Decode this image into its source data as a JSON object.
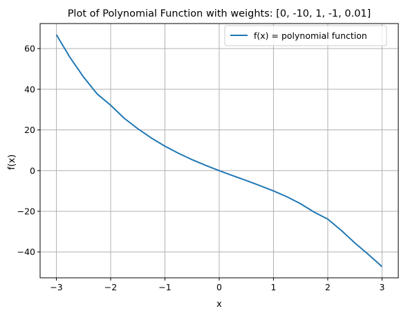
{
  "chart_data": {
    "type": "line",
    "title": "Plot of Polynomial Function with weights: [0, -10, 1, -1, 0.01]",
    "xlabel": "x",
    "ylabel": "f(x)",
    "xlim": [
      -3.3,
      3.3
    ],
    "ylim": [
      -52.7,
      72.3
    ],
    "xticks": [
      -3,
      -2,
      -1,
      0,
      1,
      2,
      3
    ],
    "xtick_labels": [
      "−3",
      "−2",
      "−1",
      "0",
      "1",
      "2",
      "3"
    ],
    "yticks": [
      -40,
      -20,
      0,
      20,
      40,
      60
    ],
    "ytick_labels": [
      "−40",
      "−20",
      "0",
      "20",
      "40",
      "60"
    ],
    "grid": true,
    "legend": "top-right",
    "series": [
      {
        "name": "f(x) = polynomial function",
        "color": "#1f77b4",
        "x": [
          -3.0,
          -2.75,
          -2.5,
          -2.25,
          -2.0,
          -1.75,
          -1.5,
          -1.25,
          -1.0,
          -0.75,
          -0.5,
          -0.25,
          0.0,
          0.25,
          0.5,
          0.75,
          1.0,
          1.25,
          1.5,
          1.75,
          2.0,
          2.25,
          2.5,
          2.75,
          3.0
        ],
        "y": [
          66.81,
          55.67,
          46.02,
          37.71,
          32.16,
          25.72,
          20.6,
          16.03,
          12.01,
          8.53,
          5.38,
          2.58,
          0.0,
          -2.48,
          -4.88,
          -7.36,
          -9.99,
          -12.89,
          -16.31,
          -20.42,
          -23.84,
          -29.4,
          -35.57,
          -41.26,
          -47.19
        ]
      }
    ]
  }
}
